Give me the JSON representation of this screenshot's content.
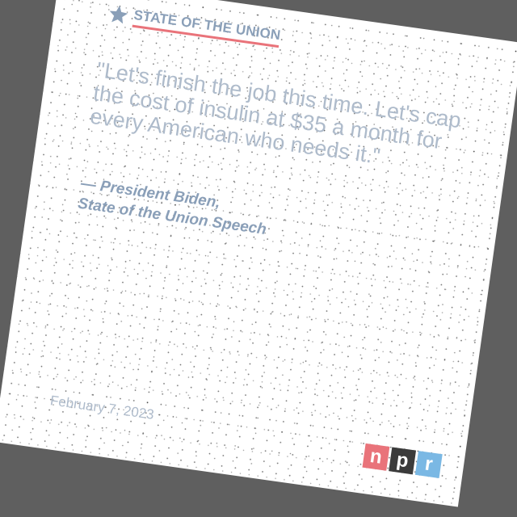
{
  "header": {
    "title": "STATE OF THE UNION",
    "icon": "star-icon"
  },
  "quote": {
    "text": "\"Let's finish the job this time. Let's cap the cost of insulin at $35 a month for every American who needs it.\""
  },
  "attribution": {
    "line1": "— President Biden,",
    "line2": "State of the Union Speech"
  },
  "date": "February 7, 2023",
  "logo": {
    "letters": [
      "n",
      "p",
      "r"
    ],
    "colors": [
      "#e9737a",
      "#3b3b3b",
      "#7ab8e4"
    ]
  },
  "colors": {
    "accent": "#e9737a",
    "text": "#8a9fb8",
    "quote": "#aebbcb"
  }
}
